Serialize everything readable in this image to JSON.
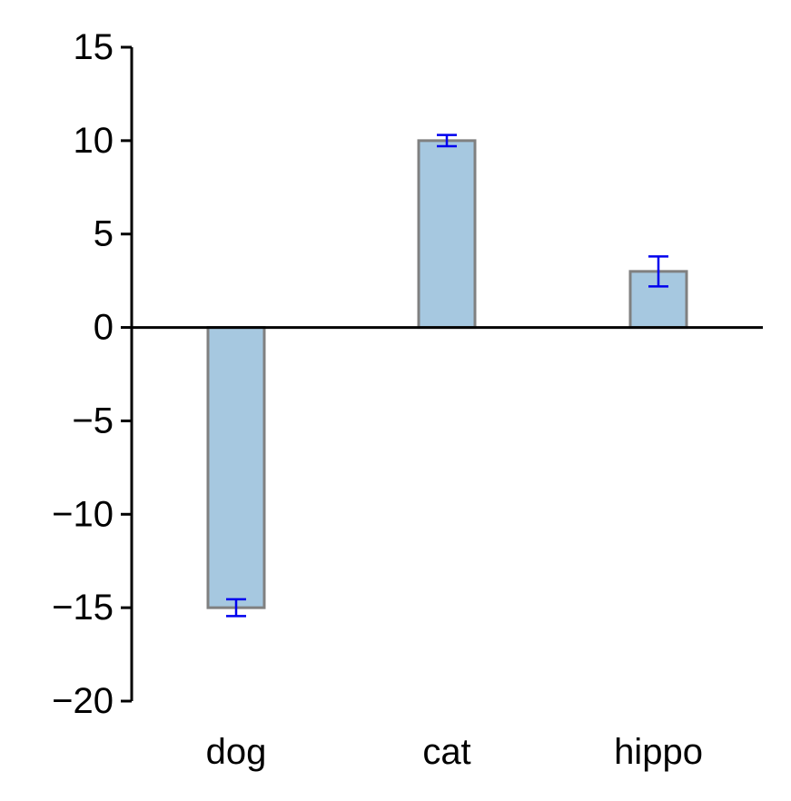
{
  "chart_data": {
    "type": "bar",
    "categories": [
      "dog",
      "cat",
      "hippo"
    ],
    "values": [
      -15,
      10,
      3
    ],
    "errors": [
      0.45,
      0.3,
      0.8
    ],
    "title": "",
    "xlabel": "",
    "ylabel": "",
    "ylim": [
      -20,
      15
    ],
    "yticks": [
      15,
      10,
      5,
      0,
      -5,
      -10,
      -15,
      -20
    ],
    "ytick_labels": [
      "15",
      "10",
      "5",
      "0",
      "−5",
      "−10",
      "−15",
      "−20"
    ],
    "grid": false,
    "legend": "none",
    "colors": {
      "bar_fill": "#a6c8e0",
      "bar_edge": "#808080",
      "error_bar": "#0000ee",
      "axis": "#000000"
    }
  }
}
